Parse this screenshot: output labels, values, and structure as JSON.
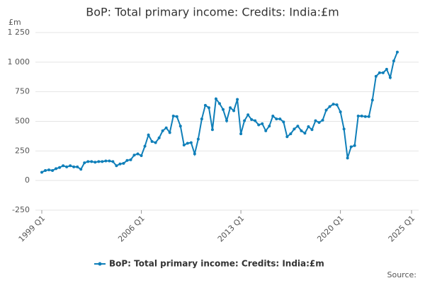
{
  "chart_data": {
    "type": "line",
    "title": "BoP: Total primary income: Credits: India:£m",
    "y_unit": "£m",
    "source": "Source:",
    "legend": "bottom",
    "grid": true,
    "categories": [
      "1999 Q1",
      null,
      null,
      null,
      null,
      null,
      null,
      null,
      null,
      null,
      null,
      null,
      null,
      null,
      null,
      null,
      null,
      null,
      null,
      null,
      null,
      null,
      null,
      null,
      null,
      null,
      null,
      null,
      "2006 Q1",
      null,
      null,
      null,
      null,
      null,
      null,
      null,
      null,
      null,
      null,
      null,
      null,
      null,
      null,
      null,
      null,
      null,
      null,
      null,
      null,
      null,
      null,
      null,
      null,
      null,
      null,
      null,
      "2013 Q1",
      null,
      null,
      null,
      null,
      null,
      null,
      null,
      null,
      null,
      null,
      null,
      null,
      null,
      null,
      null,
      null,
      null,
      null,
      null,
      null,
      null,
      null,
      null,
      null,
      null,
      null,
      null,
      "2020 Q1",
      null,
      null,
      null,
      null,
      null,
      null,
      null,
      null,
      null,
      null,
      null,
      null,
      null,
      null,
      null,
      null,
      null,
      null,
      null,
      "2025 Q1"
    ],
    "series": [
      {
        "name": "BoP: Total primary income: Credits: India:£m",
        "color": "#0f7fb9",
        "values": [
          70,
          85,
          90,
          85,
          100,
          110,
          125,
          115,
          125,
          115,
          115,
          95,
          150,
          160,
          160,
          155,
          160,
          160,
          165,
          165,
          160,
          125,
          140,
          145,
          170,
          175,
          215,
          225,
          210,
          290,
          385,
          330,
          320,
          360,
          420,
          445,
          405,
          545,
          540,
          460,
          300,
          315,
          320,
          225,
          350,
          520,
          635,
          615,
          430,
          690,
          650,
          600,
          505,
          615,
          590,
          685,
          395,
          505,
          555,
          515,
          505,
          470,
          480,
          420,
          460,
          545,
          520,
          520,
          495,
          370,
          395,
          435,
          460,
          420,
          400,
          455,
          430,
          505,
          490,
          510,
          595,
          625,
          645,
          640,
          580,
          435,
          190,
          285,
          295,
          545,
          545,
          540,
          540,
          680,
          880,
          910,
          910,
          940,
          870,
          1010,
          1085,
          null,
          null,
          null,
          null
        ]
      }
    ],
    "ylim": [
      -250,
      1250
    ],
    "yticks": [
      -250,
      0,
      250,
      500,
      750,
      {
        "value": 1000,
        "label": "1 000"
      },
      {
        "value": 1250,
        "label": "1 250"
      }
    ]
  }
}
